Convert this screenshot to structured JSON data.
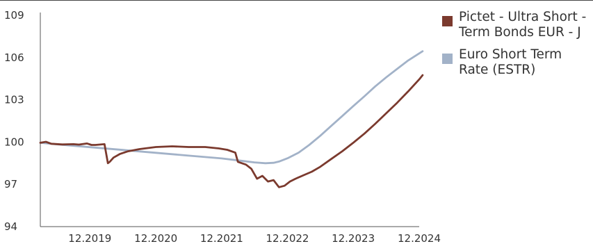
{
  "chart_data": {
    "type": "line",
    "title": "",
    "xlabel": "",
    "ylabel": "",
    "ylim": [
      94,
      109
    ],
    "yticks": [
      94,
      97,
      100,
      103,
      106,
      109
    ],
    "xticks": [
      "12.2019",
      "12.2020",
      "12.2021",
      "12.2022",
      "12.2023",
      "12.2024"
    ],
    "xrange": [
      "2019-03",
      "2024-12"
    ],
    "grid": false,
    "legend_position": "right",
    "series": [
      {
        "name": "Pictet - Ultra Short -Term Bonds EUR - J",
        "color": "#7b3a2e",
        "points": [
          [
            "2019-03-01",
            99.95
          ],
          [
            "2019-04-01",
            100.02
          ],
          [
            "2019-05-01",
            99.88
          ],
          [
            "2019-07-01",
            99.83
          ],
          [
            "2019-09-01",
            99.85
          ],
          [
            "2019-10-01",
            99.82
          ],
          [
            "2019-11-15",
            99.9
          ],
          [
            "2019-12-10",
            99.8
          ],
          [
            "2020-01-01",
            99.8
          ],
          [
            "2020-02-20",
            99.85
          ],
          [
            "2020-03-10",
            98.5
          ],
          [
            "2020-03-20",
            98.6
          ],
          [
            "2020-04-10",
            98.9
          ],
          [
            "2020-05-15",
            99.15
          ],
          [
            "2020-06-30",
            99.35
          ],
          [
            "2020-09-01",
            99.5
          ],
          [
            "2020-12-01",
            99.65
          ],
          [
            "2021-03-01",
            99.7
          ],
          [
            "2021-06-01",
            99.65
          ],
          [
            "2021-09-01",
            99.65
          ],
          [
            "2021-11-15",
            99.55
          ],
          [
            "2022-01-01",
            99.45
          ],
          [
            "2022-02-15",
            99.25
          ],
          [
            "2022-03-01",
            98.6
          ],
          [
            "2022-04-15",
            98.4
          ],
          [
            "2022-05-15",
            98.1
          ],
          [
            "2022-06-15",
            97.4
          ],
          [
            "2022-07-15",
            97.6
          ],
          [
            "2022-08-15",
            97.2
          ],
          [
            "2022-09-15",
            97.3
          ],
          [
            "2022-10-15",
            96.8
          ],
          [
            "2022-11-15",
            96.9
          ],
          [
            "2022-12-15",
            97.2
          ],
          [
            "2023-01-15",
            97.4
          ],
          [
            "2023-03-01",
            97.65
          ],
          [
            "2023-04-15",
            97.9
          ],
          [
            "2023-06-01",
            98.25
          ],
          [
            "2023-08-01",
            98.8
          ],
          [
            "2023-10-01",
            99.35
          ],
          [
            "2023-12-01",
            99.95
          ],
          [
            "2024-02-01",
            100.6
          ],
          [
            "2024-04-01",
            101.3
          ],
          [
            "2024-06-01",
            102.05
          ],
          [
            "2024-08-01",
            102.8
          ],
          [
            "2024-10-01",
            103.6
          ],
          [
            "2024-12-01",
            104.45
          ],
          [
            "2024-12-20",
            104.75
          ]
        ]
      },
      {
        "name": "Euro Short Term Rate (ESTR)",
        "color": "#a2b2c8",
        "points": [
          [
            "2019-03-01",
            99.95
          ],
          [
            "2019-06-01",
            99.84
          ],
          [
            "2019-09-01",
            99.74
          ],
          [
            "2019-12-01",
            99.64
          ],
          [
            "2020-03-01",
            99.54
          ],
          [
            "2020-06-01",
            99.44
          ],
          [
            "2020-09-01",
            99.34
          ],
          [
            "2020-12-01",
            99.24
          ],
          [
            "2021-03-01",
            99.14
          ],
          [
            "2021-06-01",
            99.04
          ],
          [
            "2021-09-01",
            98.94
          ],
          [
            "2021-12-01",
            98.84
          ],
          [
            "2022-03-01",
            98.7
          ],
          [
            "2022-06-01",
            98.56
          ],
          [
            "2022-08-01",
            98.5
          ],
          [
            "2022-09-15",
            98.53
          ],
          [
            "2022-10-15",
            98.62
          ],
          [
            "2022-12-01",
            98.85
          ],
          [
            "2023-02-01",
            99.25
          ],
          [
            "2023-04-01",
            99.8
          ],
          [
            "2023-06-01",
            100.45
          ],
          [
            "2023-08-01",
            101.15
          ],
          [
            "2023-10-01",
            101.85
          ],
          [
            "2023-12-01",
            102.55
          ],
          [
            "2024-02-01",
            103.25
          ],
          [
            "2024-04-01",
            103.95
          ],
          [
            "2024-06-01",
            104.6
          ],
          [
            "2024-08-01",
            105.2
          ],
          [
            "2024-10-01",
            105.8
          ],
          [
            "2024-12-20",
            106.45
          ]
        ]
      }
    ]
  }
}
